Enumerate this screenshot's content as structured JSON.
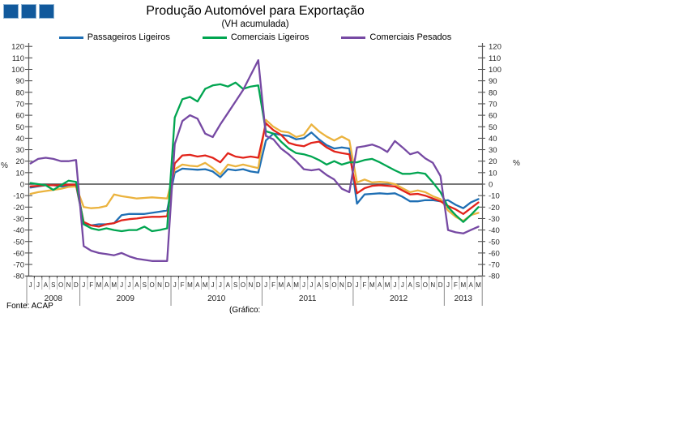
{
  "header": {
    "title": "Produção Automóvel para Exportação",
    "subtitle": "(VH acumulada)"
  },
  "footer": {
    "source": "Fonte: ACAP",
    "caption": "(Gráfico:"
  },
  "logo": {
    "square_count": 3,
    "square_color": "#11599C"
  },
  "chart_data": {
    "type": "line",
    "title": "Produção Automóvel para Exportação",
    "subtitle": "(VH acumulada)",
    "ylabel": "%",
    "ylim": [
      -80,
      120
    ],
    "ytick_step": 10,
    "grid": "zero-line-only",
    "legend_position": "top",
    "legend": [
      "Passageiros Ligeiros",
      "Comerciais Ligeiros",
      "Comerciais Pesados"
    ],
    "x_years": [
      {
        "label": "2008",
        "months": [
          "J",
          "J",
          "A",
          "S",
          "O",
          "N",
          "D"
        ]
      },
      {
        "label": "2009",
        "months": [
          "J",
          "F",
          "M",
          "A",
          "M",
          "J",
          "J",
          "A",
          "S",
          "O",
          "N",
          "D"
        ]
      },
      {
        "label": "2010",
        "months": [
          "J",
          "F",
          "M",
          "A",
          "M",
          "J",
          "J",
          "A",
          "S",
          "O",
          "N",
          "D"
        ]
      },
      {
        "label": "2011",
        "months": [
          "J",
          "F",
          "M",
          "A",
          "M",
          "J",
          "J",
          "A",
          "S",
          "O",
          "N",
          "D"
        ]
      },
      {
        "label": "2012",
        "months": [
          "J",
          "F",
          "M",
          "A",
          "M",
          "J",
          "J",
          "A",
          "S",
          "O",
          "N",
          "D"
        ]
      },
      {
        "label": "2013",
        "months": [
          "J",
          "F",
          "M",
          "A",
          "M"
        ]
      }
    ],
    "draw_order": [
      0,
      4,
      3,
      1,
      2
    ],
    "series": [
      {
        "name": "Passageiros Ligeiros",
        "color": "#1F6FB4",
        "in_legend": true,
        "values": [
          -3,
          -2,
          -1,
          -1,
          -2,
          -2,
          -1,
          -34,
          -36,
          -35,
          -35,
          -34,
          -27,
          -26,
          -26,
          -26,
          -25,
          -24,
          -23,
          10,
          13.5,
          13,
          12.5,
          13,
          11,
          6,
          13,
          12,
          13,
          11,
          10,
          38,
          44,
          43,
          42,
          39,
          40,
          45,
          39,
          34,
          31,
          32,
          31,
          -17,
          -9,
          -8.5,
          -8,
          -8.5,
          -8,
          -11,
          -15,
          -15,
          -14,
          -14,
          -15,
          -14,
          -18,
          -21,
          -16,
          -13
        ]
      },
      {
        "name": "Comerciais Ligeiros",
        "color": "#00A550",
        "in_legend": true,
        "values": [
          1,
          0,
          -1,
          -5,
          -1,
          3,
          2,
          -35,
          -38.5,
          -40,
          -38.5,
          -40,
          -41,
          -40,
          -40,
          -37,
          -41,
          -40,
          -38.5,
          58,
          74,
          76,
          72,
          83,
          86,
          87,
          85,
          88.5,
          83,
          85,
          86,
          46,
          44,
          37,
          31,
          27,
          26,
          24,
          21,
          17,
          20,
          17,
          19,
          19,
          21,
          22,
          19,
          15.5,
          12,
          9,
          9,
          10,
          9,
          1.5,
          -7,
          -20,
          -27,
          -33,
          -27,
          -20
        ]
      },
      {
        "name": "Comerciais Pesados",
        "color": "#7649A3",
        "in_legend": true,
        "values": [
          18,
          22,
          23,
          22,
          20,
          20,
          21,
          -54,
          -58,
          -60,
          -61,
          -62,
          -60,
          -63,
          -65,
          -66,
          -67,
          -67,
          -67,
          35,
          55,
          60,
          57,
          44,
          41,
          52,
          62,
          72,
          82,
          95,
          108,
          42,
          39,
          31,
          26,
          20,
          13,
          12,
          13,
          8,
          4,
          -4,
          -7,
          32,
          33,
          34.5,
          32,
          28,
          37.5,
          32,
          26,
          28,
          22.5,
          18.5,
          7,
          -40,
          -42,
          -43,
          -40,
          -37
        ]
      },
      {
        "name": "unlabeled-red",
        "color": "#E2231A",
        "in_legend": false,
        "values": [
          -2,
          -1.5,
          -1,
          -1,
          -1,
          -0.5,
          -0.5,
          -33,
          -36,
          -37,
          -35,
          -34,
          -31.5,
          -30.5,
          -30,
          -29,
          -28.5,
          -28.5,
          -28,
          18,
          25,
          25.5,
          24,
          25,
          23,
          19,
          27,
          24,
          23,
          24,
          23,
          53,
          47,
          43,
          36,
          34,
          33,
          36,
          37,
          32,
          28.5,
          27,
          26,
          -8,
          -3.5,
          -1.5,
          -1,
          -1.5,
          -2,
          -5.5,
          -9,
          -8.5,
          -10,
          -12.5,
          -15,
          -19,
          -22,
          -26,
          -21,
          -16
        ]
      },
      {
        "name": "unlabeled-yellow",
        "color": "#EBB33E",
        "in_legend": false,
        "values": [
          -8.5,
          -7,
          -6,
          -5,
          -4,
          -2.5,
          -2,
          -20,
          -21,
          -20.5,
          -19,
          -9,
          -10.5,
          -11.5,
          -12.5,
          -12,
          -11.5,
          -12,
          -12.5,
          13,
          17,
          16,
          15.5,
          18.5,
          14,
          8.5,
          17,
          15.5,
          17,
          15.5,
          14,
          56,
          50,
          46,
          45,
          41,
          43,
          52,
          46,
          41.5,
          38,
          41.5,
          38,
          1.5,
          4,
          1.5,
          2,
          1.5,
          0,
          -3.5,
          -7,
          -5.5,
          -7,
          -10.5,
          -13,
          -23,
          -28.5,
          -32,
          -27,
          -25
        ]
      }
    ]
  }
}
